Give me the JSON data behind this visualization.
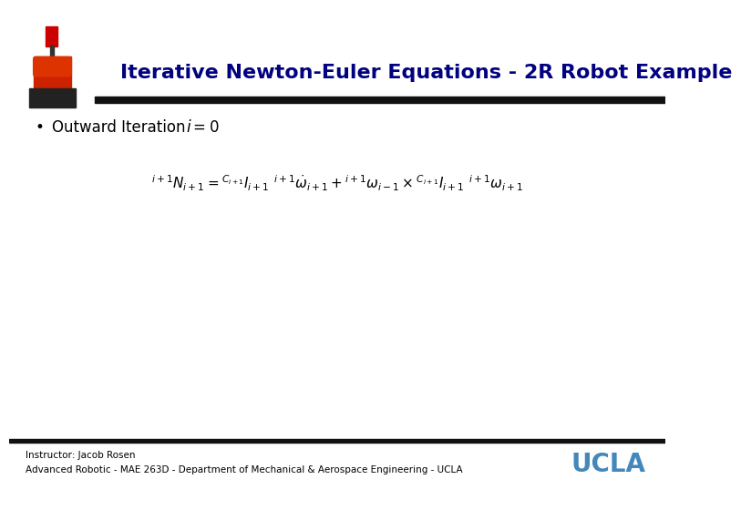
{
  "title": "Iterative Newton-Euler Equations - 2R Robot Example",
  "title_color": "#000080",
  "title_fontsize": 16,
  "bullet_text": "Outward Iteration",
  "footer_line1": "Instructor: Jacob Rosen",
  "footer_line2": "Advanced Robotic - MAE 263D - Department of Mechanical & Aerospace Engineering - UCLA",
  "ucla_text": "UCLA",
  "ucla_color": "#4488BB",
  "bg_color": "#ffffff",
  "bar_color": "#111111",
  "eq_fontsize": 11,
  "bullet_fontsize": 12,
  "footer_fontsize": 7.5
}
